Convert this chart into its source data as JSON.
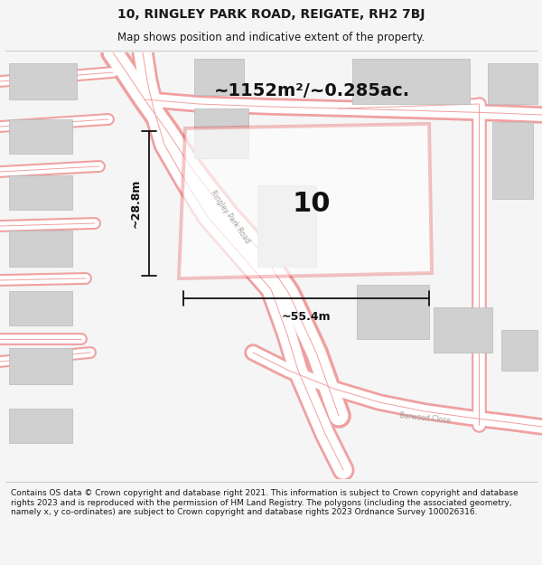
{
  "title_line1": "10, RINGLEY PARK ROAD, REIGATE, RH2 7BJ",
  "title_line2": "Map shows position and indicative extent of the property.",
  "footer_text": "Contains OS data © Crown copyright and database right 2021. This information is subject to Crown copyright and database rights 2023 and is reproduced with the permission of HM Land Registry. The polygons (including the associated geometry, namely x, y co-ordinates) are subject to Crown copyright and database rights 2023 Ordnance Survey 100026316.",
  "area_label": "~1152m²/~0.285ac.",
  "number_label": "10",
  "width_label": "~55.4m",
  "height_label": "~28.8m",
  "bg_color": "#f5f5f5",
  "map_bg": "#ffffff",
  "road_color": "#f0a0a0",
  "road_fill": "#ffffff",
  "building_color": "#d0d0d0",
  "building_edge": "#b8b8b8",
  "highlight_color": "#dd0000",
  "text_color": "#1a1a1a",
  "dim_color": "#111111",
  "sep_color": "#cccccc",
  "road_label_color": "#a0a0a0",
  "title_fontsize": 10,
  "subtitle_fontsize": 8.5,
  "footer_fontsize": 6.5,
  "area_fontsize": 14,
  "number_fontsize": 22,
  "dim_fontsize": 9,
  "road_label_fontsize": 5.5
}
